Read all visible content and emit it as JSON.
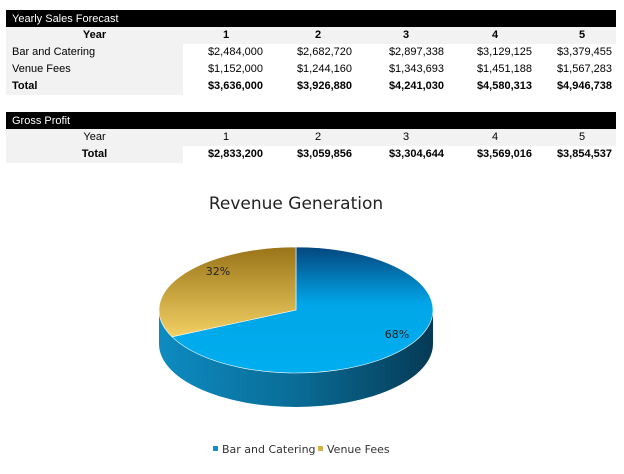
{
  "sales": {
    "title": "Yearly Sales Forecast",
    "year_label": "Year",
    "years": [
      "1",
      "2",
      "3",
      "4",
      "5"
    ],
    "rows": [
      {
        "label": "Bar and Catering",
        "values": [
          "$2,484,000",
          "$2,682,720",
          "$2,897,338",
          "$3,129,125",
          "$3,379,455"
        ]
      },
      {
        "label": "Venue Fees",
        "values": [
          "$1,152,000",
          "$1,244,160",
          "$1,343,693",
          "$1,451,188",
          "$1,567,283"
        ]
      },
      {
        "label": "Total",
        "values": [
          "$3,636,000",
          "$3,926,880",
          "$4,241,030",
          "$4,580,313",
          "$4,946,738"
        ]
      }
    ]
  },
  "profit": {
    "title": "Gross Profit",
    "year_label": "Year",
    "years": [
      "1",
      "2",
      "3",
      "4",
      "5"
    ],
    "rows": [
      {
        "label": "Total",
        "values": [
          "$2,833,200",
          "$3,059,856",
          "$3,304,644",
          "$3,569,016",
          "$3,854,537"
        ]
      }
    ]
  },
  "chart_data": {
    "type": "pie",
    "title": "Revenue Generation",
    "style": "3d",
    "categories": [
      "Bar and Catering",
      "Venue Fees"
    ],
    "values": [
      68,
      32
    ],
    "labels": [
      "68%",
      "32%"
    ],
    "colors": [
      "#00a6e8",
      "#e8c055"
    ],
    "legend": "bottom"
  }
}
